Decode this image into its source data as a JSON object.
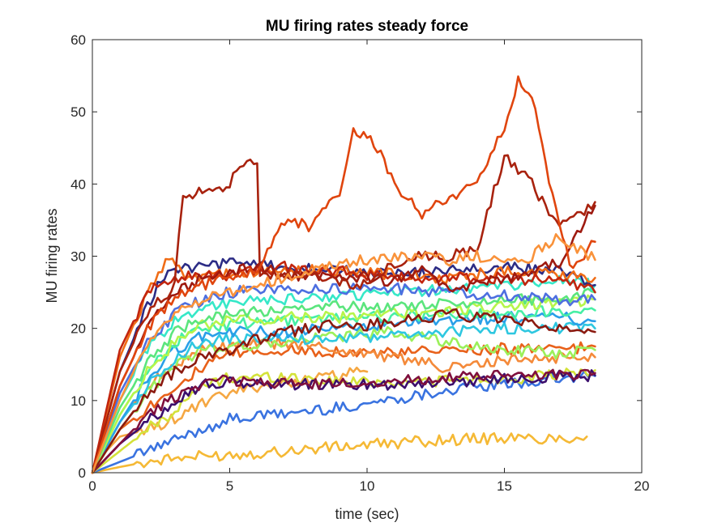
{
  "chart_data": {
    "type": "line",
    "title": "MU firing rates steady force",
    "xlabel": "time (sec)",
    "ylabel": "MU firing rates",
    "xlim": [
      0,
      20
    ],
    "ylim": [
      0,
      60
    ],
    "xticks": [
      0,
      5,
      10,
      15,
      20
    ],
    "yticks": [
      0,
      10,
      20,
      30,
      40,
      50,
      60
    ],
    "grid": false,
    "legend": "none",
    "series": [
      {
        "color": "#f5b935",
        "x": [
          0,
          1,
          2,
          3,
          5,
          7,
          9,
          11,
          13,
          15,
          16,
          17,
          18
        ],
        "y": [
          0,
          0.8,
          1.5,
          2,
          2.5,
          3,
          3.6,
          4.1,
          4.6,
          4.8,
          4.7,
          4.8,
          5
        ]
      },
      {
        "color": "#3a73e0",
        "x": [
          0,
          1,
          2,
          3,
          4,
          5,
          6,
          7,
          9,
          11,
          13,
          15,
          17,
          18.3
        ],
        "y": [
          0,
          1.5,
          3,
          4.5,
          6,
          7.4,
          7.8,
          8.2,
          9,
          10.2,
          11.5,
          12.2,
          13,
          13.4
        ]
      },
      {
        "color": "#f5a742",
        "x": [
          0,
          0.5,
          1,
          2,
          3,
          4,
          5,
          6,
          7,
          8,
          9,
          10
        ],
        "y": [
          0,
          3,
          5,
          6,
          7.5,
          9.5,
          11,
          12,
          12.5,
          13,
          13.5,
          14
        ]
      },
      {
        "color": "#d4e23a",
        "x": [
          0,
          1,
          2,
          3,
          4,
          5,
          7,
          9,
          11,
          13,
          15,
          17,
          18.3
        ],
        "y": [
          0,
          3,
          6,
          8.5,
          12,
          13.2,
          13.3,
          12.6,
          12.6,
          12.8,
          13,
          13.5,
          14.2
        ]
      },
      {
        "color": "#3b0f6d",
        "x": [
          0,
          1,
          2,
          3,
          4,
          5,
          7,
          9,
          11,
          13,
          15,
          17,
          18.3
        ],
        "y": [
          0,
          4,
          7,
          10,
          12.2,
          12.4,
          12.3,
          12.2,
          12.3,
          12.6,
          13,
          13.4,
          13.5
        ]
      },
      {
        "color": "#7f0f3d",
        "x": [
          0,
          1,
          2,
          3,
          4,
          5,
          6,
          8,
          10,
          12,
          14,
          16,
          18.3
        ],
        "y": [
          0,
          4,
          8,
          10.5,
          12.5,
          12.8,
          12.6,
          12.2,
          12.5,
          13,
          13.3,
          13.6,
          13.8
        ]
      },
      {
        "color": "#e8611a",
        "x": [
          0,
          1,
          2,
          3,
          4,
          5,
          7,
          9,
          11,
          13,
          15,
          17,
          18.3
        ],
        "y": [
          0,
          6,
          9,
          12,
          14.5,
          16.5,
          17,
          16.8,
          16.5,
          17,
          17.2,
          17,
          17.5
        ]
      },
      {
        "color": "#f48a3a",
        "x": [
          0,
          1,
          2,
          3,
          4,
          5,
          7,
          9,
          11,
          13,
          15,
          17,
          18.3
        ],
        "y": [
          0,
          7,
          12,
          15,
          17,
          17.5,
          18,
          17,
          16,
          14.5,
          15.5,
          16,
          16
        ]
      },
      {
        "color": "#9bf05a",
        "x": [
          0,
          1,
          2,
          3,
          4,
          5,
          7,
          9,
          11,
          13,
          15,
          17,
          18.3
        ],
        "y": [
          0,
          6,
          11,
          15,
          17,
          17.5,
          18,
          19,
          19.5,
          18,
          17,
          16.5,
          17
        ]
      },
      {
        "color": "#2ec7e0",
        "x": [
          0,
          1,
          2,
          3,
          4,
          5,
          7,
          9,
          11,
          13,
          15,
          17,
          18.3
        ],
        "y": [
          0,
          7,
          12,
          16,
          18,
          18.5,
          18.5,
          18.5,
          19,
          19.5,
          20,
          20,
          20
        ]
      },
      {
        "color": "#2a9fe8",
        "x": [
          0,
          1,
          2,
          3,
          4,
          5,
          7,
          9,
          11,
          13,
          15,
          17,
          18.3
        ],
        "y": [
          0,
          7,
          13,
          17,
          19,
          19.5,
          19.5,
          20,
          20.5,
          21,
          21.5,
          21.5,
          21
        ]
      },
      {
        "color": "#47efa5",
        "x": [
          0,
          1,
          2,
          3,
          4,
          5,
          7,
          9,
          11,
          13,
          15,
          17,
          18.3
        ],
        "y": [
          0,
          8,
          14,
          18,
          20,
          20.5,
          21,
          21.5,
          21.5,
          22,
          22,
          22.5,
          22.5
        ]
      },
      {
        "color": "#b6f54a",
        "x": [
          0,
          1,
          2,
          3,
          4,
          5,
          7,
          9,
          11,
          13,
          15,
          17,
          18.3
        ],
        "y": [
          0,
          8,
          14,
          18,
          20.5,
          21,
          21.5,
          21.5,
          22,
          22.5,
          23,
          23.5,
          24
        ]
      },
      {
        "color": "#5be57d",
        "x": [
          0,
          1,
          2,
          3,
          4,
          5,
          7,
          9,
          11,
          13,
          15,
          17,
          18.3
        ],
        "y": [
          0,
          9,
          15,
          19.5,
          21.5,
          22,
          22.5,
          23,
          23,
          23.5,
          24,
          24,
          25
        ]
      },
      {
        "color": "#36e8c8",
        "x": [
          0,
          1,
          2,
          3,
          4,
          5,
          7,
          9,
          11,
          13,
          15,
          17,
          18.3
        ],
        "y": [
          0,
          10,
          17,
          21,
          23,
          23.5,
          24,
          24.5,
          25,
          25.5,
          26,
          26.5,
          26
        ]
      },
      {
        "color": "#8b1a10",
        "x": [
          0,
          1,
          2,
          3,
          4,
          5,
          6,
          7,
          8,
          9,
          10,
          11,
          12,
          13,
          14,
          15,
          16,
          17,
          18.3
        ],
        "y": [
          0,
          6,
          11,
          14,
          16,
          17,
          18.5,
          19.5,
          20,
          20.5,
          20.5,
          21,
          21.5,
          22,
          21.5,
          21,
          20.5,
          20,
          19.5
        ]
      },
      {
        "color": "#4d6fe0",
        "x": [
          0,
          1,
          2,
          3,
          4,
          5,
          7,
          9,
          11,
          13,
          15,
          17,
          18.3
        ],
        "y": [
          0,
          11,
          18,
          22,
          24,
          25,
          25.5,
          25.5,
          25.5,
          25,
          24.5,
          24,
          24
        ]
      },
      {
        "color": "#2c2c85",
        "x": [
          0,
          1,
          2,
          2.5,
          3,
          5,
          7,
          9,
          11,
          13,
          15,
          17,
          18.3
        ],
        "y": [
          0,
          14,
          23,
          27,
          28,
          29,
          28.5,
          28,
          27.5,
          28,
          28.5,
          28,
          26
        ]
      },
      {
        "color": "#f06c16",
        "x": [
          0,
          1,
          2,
          2.8,
          3.5,
          5,
          7,
          9,
          11,
          13,
          15,
          17,
          18.3
        ],
        "y": [
          0,
          16,
          25,
          30,
          27,
          27.5,
          28,
          28,
          27.5,
          27,
          28,
          27.5,
          27
        ]
      },
      {
        "color": "#c2250e",
        "x": [
          0,
          1,
          2,
          3,
          5,
          7,
          9,
          11,
          13,
          15,
          17,
          18.3
        ],
        "y": [
          0,
          17,
          25,
          27,
          27.5,
          28.5,
          28,
          27,
          27,
          27,
          26.5,
          25
        ]
      },
      {
        "color": "#9e1a10",
        "x": [
          0,
          1,
          2,
          3,
          4,
          5,
          6,
          7,
          9,
          11,
          12,
          13,
          15,
          17,
          18.3
        ],
        "y": [
          0,
          12,
          20,
          25,
          27,
          27.5,
          29,
          27,
          27.5,
          26.5,
          28,
          25,
          27,
          29,
          37
        ]
      },
      {
        "color": "#a8220e",
        "x": [
          0,
          1,
          2,
          3,
          3.3,
          4,
          5,
          5.5,
          6,
          6.1,
          7,
          8,
          9,
          10,
          11,
          12,
          13,
          14,
          15,
          16,
          17,
          18.3
        ],
        "y": [
          0,
          14,
          22,
          26,
          38.5,
          39,
          40,
          43,
          42.5,
          28,
          27,
          27.5,
          26.5,
          26,
          29,
          30,
          30,
          31,
          44,
          40,
          34,
          37.5
        ]
      },
      {
        "color": "#e0450e",
        "x": [
          0,
          1,
          2,
          3,
          4,
          5,
          6,
          7,
          8,
          9,
          9.5,
          10,
          10.5,
          11,
          12,
          13,
          14,
          15,
          15.5,
          16,
          17,
          17.5,
          18.3
        ],
        "y": [
          0,
          12,
          20,
          24,
          26,
          27,
          28,
          35,
          34,
          39,
          47,
          47,
          44,
          40,
          36,
          38,
          40,
          48,
          54.5,
          52,
          34,
          28,
          32
        ]
      },
      {
        "color": "#f9923a",
        "x": [
          0,
          1,
          2,
          3,
          4,
          5,
          6,
          7,
          8,
          9,
          10,
          11,
          12,
          13,
          14,
          15,
          16,
          17,
          18.3
        ],
        "y": [
          0,
          10,
          18,
          22,
          24,
          25,
          26,
          27,
          28,
          29,
          29.5,
          30,
          30,
          29.5,
          30,
          29,
          30,
          33,
          29.5
        ]
      }
    ]
  }
}
